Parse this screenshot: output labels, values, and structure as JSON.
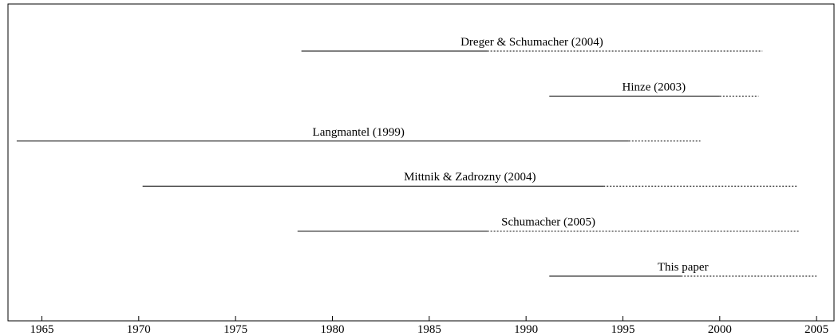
{
  "chart_data": {
    "type": "range",
    "categories": [
      "Dreger & Schumacher (2004)",
      "Hinze (2003)",
      "Langmantel (1999)",
      "Mittnik & Zadrozny (2004)",
      "Schumacher (2005)",
      "This paper"
    ],
    "start": [
      1978.4,
      1991.2,
      1963.7,
      1970.2,
      1978.2,
      1991.2
    ],
    "end": [
      1988,
      2000,
      1995.3,
      1994,
      1988,
      1998
    ],
    "forecast_end": [
      2002.2,
      2002,
      1999,
      2004,
      2004.1,
      2005
    ],
    "color": "#000000",
    "xlim": [
      1963.25,
      2005.9
    ],
    "xticks": [
      1965,
      1970,
      1975,
      1980,
      1985,
      1990,
      1995,
      2000,
      2005
    ]
  }
}
